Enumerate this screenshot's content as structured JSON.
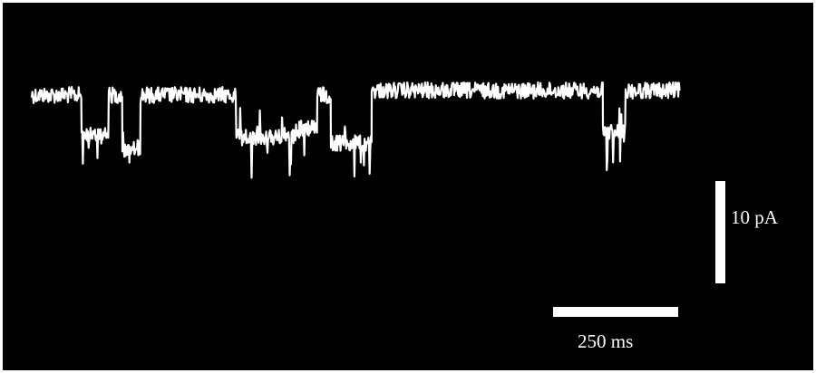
{
  "scale_bars": {
    "current": {
      "label": "10 pA"
    },
    "time": {
      "label": "250 ms"
    }
  }
}
